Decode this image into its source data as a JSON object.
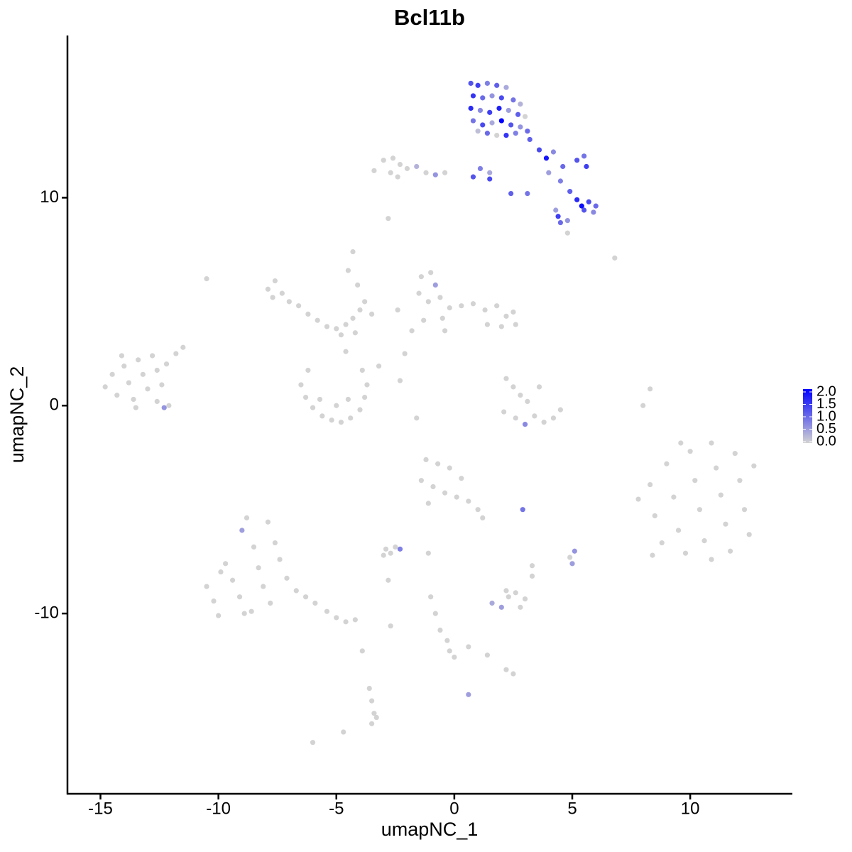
{
  "chart_data": {
    "type": "scatter",
    "title": "Bcl11b",
    "x_label": "umapNC_1",
    "y_label": "umapNC_2",
    "xlim": [
      -16.4,
      14.3
    ],
    "ylim": [
      -18.67,
      17.8
    ],
    "xticks": [
      -15,
      -10,
      -5,
      0,
      5,
      10
    ],
    "yticks": [
      -10,
      0,
      10
    ],
    "color_low": "#d3d3d3",
    "color_high": "#0000ff",
    "clim": [
      0,
      2
    ],
    "cticks": [
      {
        "value": 0,
        "label": "0.0"
      },
      {
        "value": 0.5,
        "label": "0.5"
      },
      {
        "value": 1,
        "label": "1.0"
      },
      {
        "value": 1.5,
        "label": "1.5"
      },
      {
        "value": 2,
        "label": "2.0"
      }
    ],
    "x": [
      0.7,
      1.0,
      1.4,
      1.8,
      2.2,
      0.8,
      1.2,
      1.6,
      2.0,
      2.5,
      2.8,
      0.7,
      1.1,
      1.5,
      1.9,
      2.3,
      2.7,
      3.0,
      0.8,
      1.2,
      1.6,
      2.0,
      2.4,
      2.8,
      1.4,
      1.8,
      2.2,
      2.6,
      3.1,
      1.0,
      3.2,
      3.6,
      3.9,
      4.2,
      4.6,
      5.2,
      5.5,
      5.6,
      4.0,
      4.5,
      4.9,
      5.2,
      5.4,
      5.7,
      6.0,
      5.9,
      5.5,
      4.4,
      4.5,
      4.8,
      4.3,
      3.1,
      2.4,
      1.5,
      0.8,
      1.1,
      1.5,
      4.8,
      6.8,
      -3.4,
      -3.0,
      -2.6,
      -2.3,
      -2.0,
      -1.6,
      -1.2,
      -0.8,
      -0.4,
      -2.7,
      -2.4,
      -2.8,
      -14.8,
      -14.5,
      -14.3,
      -14.0,
      -13.8,
      -13.6,
      -13.4,
      -13.2,
      -13.0,
      -12.8,
      -12.6,
      -12.4,
      -12.2,
      -12.6,
      -12.3,
      -11.8,
      -11.5,
      -12.1,
      -14.1,
      -13.5,
      -10.5,
      -7.9,
      -7.6,
      -7.3,
      -7.0,
      -6.6,
      -6.2,
      -5.8,
      -5.4,
      -5.0,
      -4.6,
      -4.3,
      -4.0,
      -3.8,
      -4.2,
      -4.8,
      -7.7,
      -4.5,
      -4.3,
      -4.1,
      -3.5,
      -6.5,
      -6.3,
      -6.0,
      -5.6,
      -5.2,
      -4.8,
      -4.4,
      -4.0,
      -3.8,
      -3.7,
      -3.9,
      -5.7,
      -5.0,
      -4.5,
      -6.2,
      -4.6,
      -3.2,
      -1.6,
      -2.3,
      -1.4,
      -1.0,
      -0.8,
      -1.5,
      -1.1,
      -0.6,
      -0.2,
      0.3,
      0.8,
      1.3,
      1.8,
      2.2,
      2.6,
      2.0,
      1.4,
      -0.5,
      -1.3,
      -1.8,
      -2.1,
      -0.4,
      -2.4,
      2.5,
      2.2,
      2.5,
      2.8,
      3.1,
      3.4,
      3.8,
      4.2,
      4.5,
      2.1,
      2.6,
      3.0,
      3.6,
      8.0,
      8.3,
      7.8,
      8.3,
      8.5,
      8.8,
      9.0,
      9.3,
      9.5,
      9.8,
      10.0,
      10.2,
      10.4,
      10.6,
      10.9,
      11.1,
      11.3,
      11.5,
      11.7,
      11.9,
      12.1,
      12.3,
      12.5,
      12.7,
      8.4,
      10.9,
      9.6,
      -1.2,
      -0.7,
      -0.2,
      0.3,
      -1.4,
      -0.9,
      -0.4,
      0.1,
      0.6,
      1.0,
      1.2,
      -1.1,
      2.9,
      -10.5,
      -10.2,
      -10.0,
      -9.7,
      -9.4,
      -9.1,
      -8.9,
      -9.0,
      -8.8,
      -8.5,
      -8.3,
      -8.1,
      -7.8,
      -7.9,
      -7.6,
      -7.4,
      -7.1,
      -6.7,
      -6.3,
      -5.9,
      -5.4,
      -5.0,
      -4.6,
      -4.2,
      -9.9,
      -8.6,
      -2.9,
      -2.5,
      -2.3,
      -2.7,
      -3.0,
      -1.1,
      5.1,
      5.0,
      4.9,
      3.3,
      1.6,
      2.0,
      2.3,
      2.6,
      3.0,
      2.8,
      2.2,
      -1.0,
      -0.8,
      -0.6,
      -0.3,
      -0.2,
      0.0,
      0.6,
      1.4,
      2.2,
      2.5,
      0.6,
      -3.9,
      -3.6,
      -3.5,
      -3.4,
      -3.5,
      -3.3,
      -4.7,
      -6.0,
      -2.7,
      -2.8,
      3.3
    ],
    "y": [
      15.5,
      15.4,
      15.5,
      15.4,
      15.3,
      14.9,
      14.8,
      14.9,
      14.8,
      14.7,
      14.5,
      14.3,
      14.2,
      14.1,
      14.3,
      14.2,
      14.0,
      13.9,
      13.7,
      13.5,
      13.6,
      13.7,
      13.5,
      13.4,
      13.1,
      13.0,
      13.0,
      13.1,
      13.2,
      13.2,
      12.8,
      12.3,
      11.9,
      12.2,
      11.5,
      11.8,
      12.0,
      11.5,
      11.2,
      10.8,
      10.3,
      9.9,
      9.6,
      9.8,
      9.6,
      9.3,
      9.4,
      9.1,
      8.8,
      8.9,
      9.4,
      10.2,
      10.2,
      10.9,
      11.0,
      11.4,
      11.2,
      8.3,
      7.1,
      11.3,
      11.8,
      11.9,
      11.6,
      11.4,
      11.5,
      11.2,
      11.1,
      11.2,
      11.2,
      11.0,
      9.0,
      0.9,
      1.5,
      0.5,
      1.9,
      1.1,
      0.3,
      2.2,
      1.5,
      0.8,
      2.4,
      1.7,
      1.0,
      2.0,
      0.2,
      -0.1,
      2.5,
      2.8,
      0.0,
      2.4,
      -0.1,
      6.1,
      5.6,
      6.0,
      5.4,
      5.0,
      4.8,
      4.4,
      4.1,
      3.8,
      3.7,
      3.9,
      4.2,
      4.6,
      5.0,
      3.5,
      3.4,
      5.2,
      6.5,
      7.4,
      5.8,
      4.4,
      1.0,
      0.4,
      -0.1,
      -0.5,
      -0.7,
      -0.8,
      -0.6,
      -0.2,
      0.4,
      1.0,
      1.7,
      0.3,
      0.0,
      0.3,
      1.7,
      2.6,
      1.9,
      -0.6,
      1.2,
      6.2,
      6.4,
      5.8,
      5.4,
      5.0,
      5.2,
      4.7,
      4.8,
      4.9,
      4.6,
      4.8,
      4.3,
      3.9,
      3.8,
      3.9,
      4.2,
      4.1,
      3.6,
      2.5,
      3.6,
      4.6,
      4.5,
      1.3,
      0.9,
      0.5,
      0.2,
      -0.5,
      -0.8,
      -0.6,
      -0.2,
      -0.3,
      -0.6,
      -0.9,
      0.9,
      0.0,
      0.8,
      -4.5,
      -3.8,
      -5.3,
      -6.6,
      -2.8,
      -4.4,
      -6.0,
      -7.1,
      -2.2,
      -3.6,
      -5.0,
      -6.5,
      -1.8,
      -3.0,
      -4.3,
      -5.7,
      -7.0,
      -2.3,
      -3.6,
      -5.0,
      -6.2,
      -2.9,
      -7.2,
      -7.4,
      -1.8,
      -2.6,
      -2.8,
      -3.0,
      -3.5,
      -3.6,
      -3.9,
      -4.2,
      -4.4,
      -4.6,
      -5.0,
      -5.4,
      -4.7,
      -5.0,
      -8.7,
      -9.4,
      -10.1,
      -7.6,
      -8.4,
      -9.2,
      -10.0,
      -6.0,
      -5.4,
      -6.8,
      -7.8,
      -8.7,
      -9.5,
      -5.6,
      -6.6,
      -7.4,
      -8.3,
      -8.9,
      -9.2,
      -9.5,
      -9.9,
      -10.2,
      -10.4,
      -10.3,
      -8.0,
      -9.9,
      -6.9,
      -6.8,
      -6.9,
      -7.1,
      -7.2,
      -7.1,
      -7.0,
      -7.6,
      -7.3,
      -7.7,
      -9.5,
      -9.7,
      -9.2,
      -9.0,
      -9.3,
      -9.7,
      -8.9,
      -9.2,
      -10.0,
      -10.8,
      -11.3,
      -11.8,
      -12.1,
      -11.6,
      -12.0,
      -12.7,
      -12.9,
      -13.9,
      -11.8,
      -13.6,
      -14.2,
      -14.8,
      -15.3,
      -15.0,
      -15.7,
      -16.2,
      -10.6,
      -8.4,
      -8.2
    ],
    "values": [
      1.2,
      1.4,
      0.8,
      1.1,
      0.4,
      1.5,
      1.0,
      0.6,
      1.3,
      0.9,
      0.3,
      1.6,
      0.7,
      1.4,
      1.7,
      0.5,
      1.1,
      0,
      0.9,
      1.3,
      0.4,
      2.0,
      1.2,
      0.6,
      1.0,
      0,
      1.5,
      0.8,
      1.0,
      0.2,
      1.1,
      1.3,
      1.8,
      0.7,
      1.0,
      1.2,
      0.9,
      1.4,
      0.5,
      0.8,
      1.1,
      1.6,
      1.9,
      1.3,
      1.0,
      0.7,
      1.2,
      1.4,
      1.0,
      0.6,
      0.5,
      0.9,
      1.1,
      1.3,
      1.2,
      0.8,
      0.4,
      0,
      0,
      0,
      0,
      0,
      0,
      0,
      0.3,
      0,
      0.6,
      0,
      0,
      0,
      0,
      0,
      0,
      0,
      0,
      0,
      0,
      0,
      0,
      0,
      0,
      0,
      0,
      0,
      0,
      0.6,
      0,
      0,
      0,
      0,
      0,
      0,
      0,
      0,
      0,
      0,
      0,
      0,
      0,
      0,
      0,
      0,
      0,
      0,
      0,
      0,
      0,
      0,
      0,
      0,
      0,
      0,
      0,
      0,
      0,
      0,
      0,
      0,
      0,
      0,
      0,
      0,
      0,
      0,
      0,
      0,
      0,
      0,
      0,
      0,
      0,
      0,
      0,
      0.5,
      0,
      0,
      0,
      0,
      0,
      0,
      0,
      0,
      0,
      0,
      0,
      0,
      0,
      0,
      0,
      0,
      0,
      0,
      0,
      0,
      0,
      0,
      0,
      0,
      0,
      0,
      0,
      0,
      0,
      0.7,
      0,
      0,
      0,
      0,
      0,
      0,
      0,
      0,
      0,
      0,
      0,
      0,
      0,
      0,
      0,
      0,
      0,
      0,
      0,
      0,
      0,
      0,
      0,
      0,
      0,
      0,
      0,
      0,
      0,
      0,
      0,
      0,
      0,
      0,
      0,
      0,
      0,
      0,
      0,
      0,
      0.9,
      0,
      0,
      0,
      0,
      0,
      0,
      0,
      0.5,
      0,
      0,
      0,
      0,
      0,
      0,
      0,
      0,
      0,
      0,
      0,
      0,
      0,
      0,
      0,
      0,
      0,
      0,
      0,
      0,
      0.8,
      0,
      0,
      0,
      0.6,
      0.5,
      0,
      0,
      0.4,
      0.5,
      0,
      0,
      0,
      0,
      0,
      0,
      0,
      0,
      0,
      0,
      0,
      0,
      0,
      0,
      0,
      0.5,
      0,
      0,
      0,
      0,
      0,
      0,
      0,
      0,
      0,
      0,
      0
    ]
  }
}
